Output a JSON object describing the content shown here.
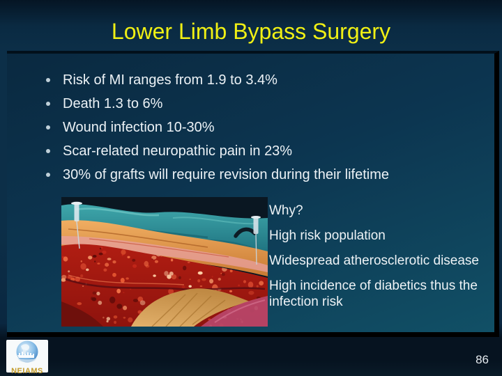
{
  "slide": {
    "title": "Lower Limb Bypass Surgery",
    "page_number": "86"
  },
  "bullets": [
    "Risk of MI ranges from 1.9 to 3.4%",
    "Death 1.3 to 6%",
    "Wound infection 10-30%",
    "Scar-related neuropathic pain in 23%",
    "30% of grafts will require revision during their lifetime"
  ],
  "side_text": [
    "Why?",
    "High risk population",
    "Widespread atherosclerotic disease",
    "High incidence of diabetics thus the infection risk"
  ],
  "logo": {
    "text": "NEIAMS",
    "icon": "globe-icon"
  },
  "colors": {
    "title_yellow": "#f0f014",
    "body_text": "#ecf2f6",
    "logo_gold": "#c39b2a",
    "slide_bg_mid": "#0c3049",
    "panel_bg_top": "#0a2940",
    "panel_bg_bottom": "#115066",
    "panel_border": "#000000"
  }
}
